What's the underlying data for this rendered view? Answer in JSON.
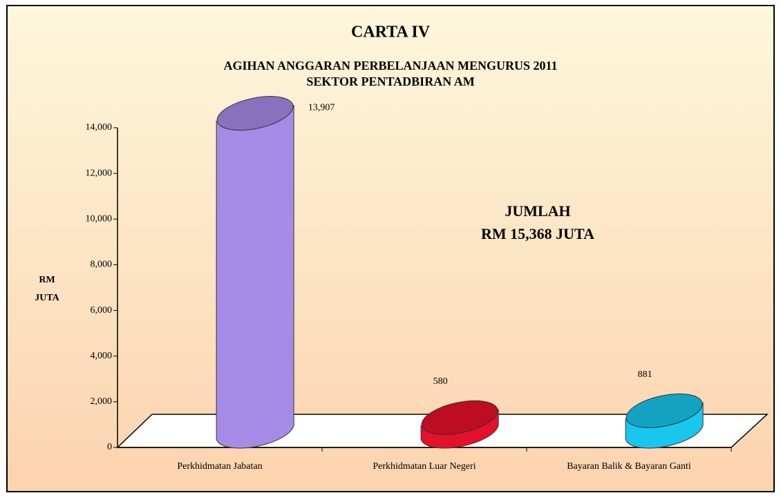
{
  "chart_data": {
    "type": "cylinder-bar",
    "title": "CARTA IV",
    "subtitle": [
      "AGIHAN ANGGARAN PERBELANJAAN MENGURUS 2011",
      "SEKTOR PENTADBIRAN AM"
    ],
    "annotation": [
      "JUMLAH",
      "RM 15,368 JUTA"
    ],
    "y_label": [
      "RM",
      "JUTA"
    ],
    "categories": [
      "Perkhidmatan Jabatan",
      "Perkhidmatan Luar Negeri",
      "Bayaran Balik & Bayaran Ganti"
    ],
    "values": [
      13907,
      580,
      881
    ],
    "value_labels": [
      "13,907",
      "580",
      "881"
    ],
    "colors": [
      "#a68be6",
      "#e5102a",
      "#18c6ee"
    ],
    "ylim": [
      0,
      14000
    ],
    "yticks": [
      0,
      {
        "value": 2000,
        "label": "2,000"
      },
      {
        "value": 4000,
        "label": "4,000"
      },
      {
        "value": 6000,
        "label": "6,000"
      },
      {
        "value": 8000,
        "label": "8,000"
      },
      {
        "value": 10000,
        "label": "10,000"
      },
      {
        "value": 12000,
        "label": "12,000"
      },
      {
        "value": 14000,
        "label": "14,000"
      }
    ]
  }
}
